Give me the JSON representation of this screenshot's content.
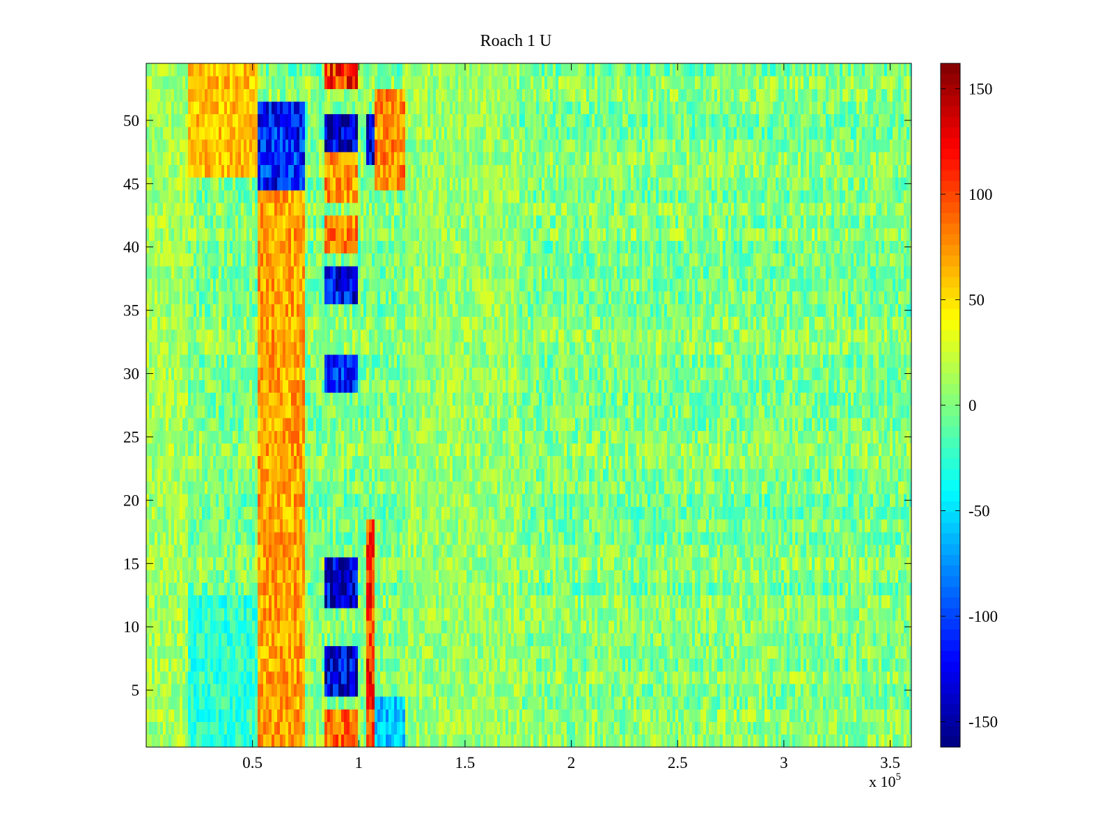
{
  "chart_data": {
    "type": "heatmap",
    "title": "Roach 1 U",
    "xlabel": "",
    "ylabel": "",
    "x_range": [
      0,
      360000
    ],
    "y_range": [
      0.5,
      54.5
    ],
    "rows": 54,
    "x_multiplier_label": {
      "prefix": "x 10",
      "exponent": "5"
    },
    "x_ticks": [
      {
        "value": 50000,
        "label": "0.5"
      },
      {
        "value": 100000,
        "label": "1"
      },
      {
        "value": 150000,
        "label": "1.5"
      },
      {
        "value": 200000,
        "label": "2"
      },
      {
        "value": 250000,
        "label": "2.5"
      },
      {
        "value": 300000,
        "label": "3"
      },
      {
        "value": 350000,
        "label": "3.5"
      }
    ],
    "y_ticks": [
      {
        "value": 5,
        "label": "5"
      },
      {
        "value": 10,
        "label": "10"
      },
      {
        "value": 15,
        "label": "15"
      },
      {
        "value": 20,
        "label": "20"
      },
      {
        "value": 25,
        "label": "25"
      },
      {
        "value": 30,
        "label": "30"
      },
      {
        "value": 35,
        "label": "35"
      },
      {
        "value": 40,
        "label": "40"
      },
      {
        "value": 45,
        "label": "45"
      },
      {
        "value": 50,
        "label": "50"
      }
    ],
    "colorbar": {
      "range": [
        -162,
        162
      ],
      "colormap": "jet",
      "ticks": [
        {
          "value": 150,
          "label": "150"
        },
        {
          "value": 100,
          "label": "100"
        },
        {
          "value": 50,
          "label": "50"
        },
        {
          "value": 0,
          "label": "0"
        },
        {
          "value": -50,
          "label": "-50"
        },
        {
          "value": -100,
          "label": "-100"
        },
        {
          "value": -150,
          "label": "-150"
        }
      ]
    },
    "background_noise": {
      "mean": 0,
      "amplitude": 26
    },
    "bands": [
      {
        "x_start": 0,
        "x_end": 20000,
        "row_start": 1,
        "row_end": 54,
        "level": 12
      },
      {
        "x_start": 20000,
        "x_end": 52000,
        "row_start": 46,
        "row_end": 54,
        "level": 60
      },
      {
        "x_start": 20000,
        "x_end": 52000,
        "row_start": 1,
        "row_end": 12,
        "level": -25
      },
      {
        "x_start": 52000,
        "x_end": 75000,
        "row_start": 1,
        "row_end": 44,
        "level": 70
      },
      {
        "x_start": 52000,
        "x_end": 75000,
        "row_start": 45,
        "row_end": 51,
        "level": -115
      },
      {
        "x_start": 84000,
        "x_end": 100000,
        "row_start": 5,
        "row_end": 8,
        "level": -135
      },
      {
        "x_start": 84000,
        "x_end": 100000,
        "row_start": 12,
        "row_end": 15,
        "level": -140
      },
      {
        "x_start": 84000,
        "x_end": 100000,
        "row_start": 29,
        "row_end": 31,
        "level": -110
      },
      {
        "x_start": 84000,
        "x_end": 100000,
        "row_start": 36,
        "row_end": 38,
        "level": -120
      },
      {
        "x_start": 84000,
        "x_end": 100000,
        "row_start": 48,
        "row_end": 50,
        "level": -150
      },
      {
        "x_start": 84000,
        "x_end": 100000,
        "row_start": 1,
        "row_end": 3,
        "level": 85
      },
      {
        "x_start": 84000,
        "x_end": 100000,
        "row_start": 40,
        "row_end": 42,
        "level": 80
      },
      {
        "x_start": 84000,
        "x_end": 100000,
        "row_start": 44,
        "row_end": 47,
        "level": 75
      },
      {
        "x_start": 84000,
        "x_end": 100000,
        "row_start": 53,
        "row_end": 54,
        "level": 110
      },
      {
        "x_start": 103000,
        "x_end": 108000,
        "row_start": 1,
        "row_end": 18,
        "level": 105
      },
      {
        "x_start": 103000,
        "x_end": 108000,
        "row_start": 47,
        "row_end": 50,
        "level": -150
      },
      {
        "x_start": 108000,
        "x_end": 122000,
        "row_start": 45,
        "row_end": 52,
        "level": 80
      },
      {
        "x_start": 108000,
        "x_end": 122000,
        "row_start": 1,
        "row_end": 4,
        "level": -60
      },
      {
        "x_start": 122000,
        "x_end": 175000,
        "row_start": 1,
        "row_end": 54,
        "level": 8
      }
    ]
  }
}
